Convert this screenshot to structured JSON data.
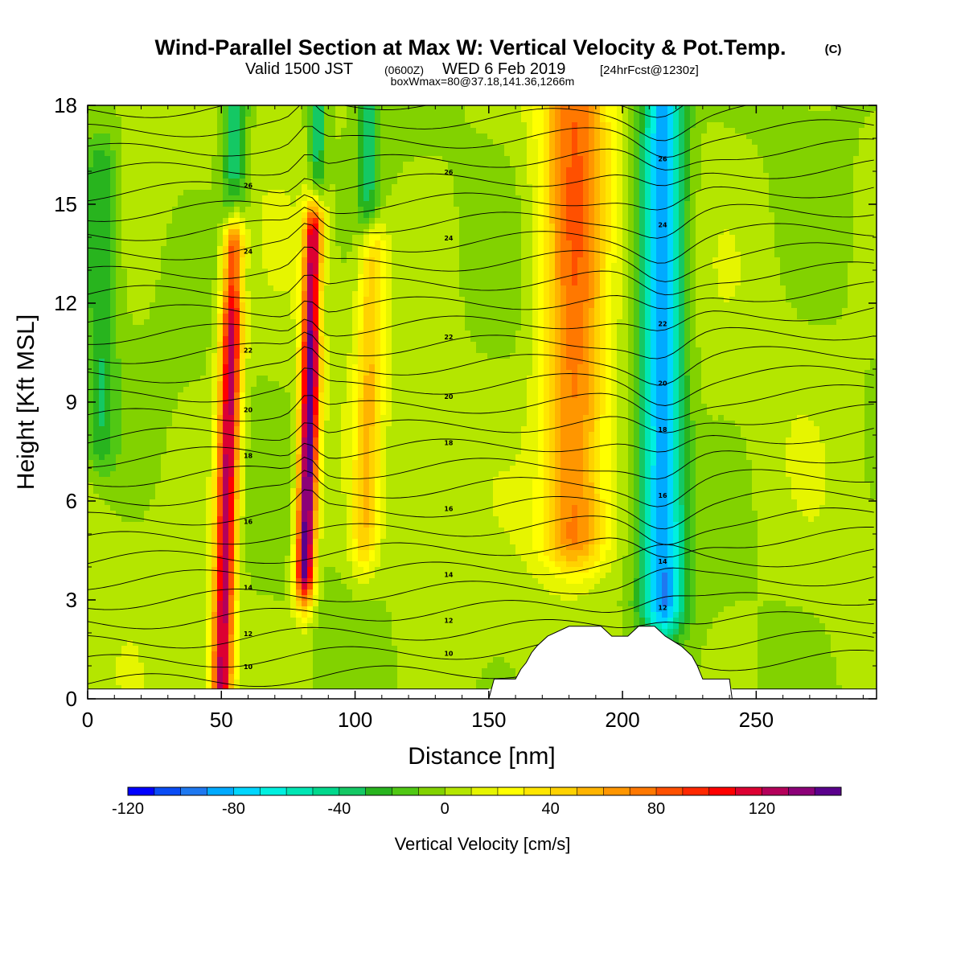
{
  "title": {
    "main": "Wind-Parallel Section at Max W: Vertical Velocity & Pot.Temp.",
    "copyright": "(C)",
    "valid_prefix": "Valid 1500 JST",
    "valid_utc": "(0600Z)",
    "valid_date": "WED 6 Feb 2019",
    "forecast": "[24hrFcst@1230z]",
    "box": "boxWmax=80@37.18,141.36,1266m"
  },
  "chart_data": {
    "type": "heatmap",
    "xlabel": "Distance [nm]",
    "ylabel": "Height [Kft MSL]",
    "xlim": [
      0,
      295
    ],
    "ylim": [
      0,
      18
    ],
    "x_ticks": [
      0,
      50,
      100,
      150,
      200,
      250
    ],
    "y_ticks": [
      0,
      3,
      6,
      9,
      12,
      15,
      18
    ],
    "colorbar": {
      "label": "Vertical Velocity [cm/s]",
      "min": -120,
      "max": 150,
      "step": 10,
      "tick_values": [
        -120,
        -80,
        -40,
        0,
        40,
        80,
        120
      ],
      "tick_labels": [
        "-120",
        "-80",
        "-40",
        "0",
        "40",
        "80",
        "120"
      ],
      "colors": [
        "#0000ff",
        "#0a4cf5",
        "#1e78f0",
        "#00aaff",
        "#00d6ff",
        "#00f0e0",
        "#00e6b4",
        "#00d88c",
        "#14c864",
        "#28b41e",
        "#50c814",
        "#82d200",
        "#b4e600",
        "#e6f500",
        "#ffff00",
        "#ffe600",
        "#ffd200",
        "#ffb400",
        "#ff9600",
        "#ff7800",
        "#ff5000",
        "#ff2800",
        "#ff0000",
        "#dc0032",
        "#b4005a",
        "#8c0078",
        "#5a008c"
      ]
    },
    "velocity_features": [
      {
        "x": 52,
        "ymin": 0.5,
        "ymax": 13.5,
        "w": 125,
        "half_width": 4
      },
      {
        "x": 82,
        "ymin": 4,
        "ymax": 14,
        "w": 150,
        "half_width": 3.5
      },
      {
        "x": 104,
        "ymin": 5,
        "ymax": 13.5,
        "w": 45,
        "half_width": 5
      },
      {
        "x": 182,
        "ymin": 5,
        "ymax": 18,
        "w": 75,
        "half_width": 12
      },
      {
        "x": 215,
        "ymin": 3,
        "ymax": 18,
        "w": -90,
        "half_width": 8
      },
      {
        "x": 86,
        "ymin": 12,
        "ymax": 18,
        "w": -40,
        "half_width": 3
      },
      {
        "x": 55,
        "ymin": 13,
        "ymax": 18,
        "w": -40,
        "half_width": 5
      },
      {
        "x": 105,
        "ymin": 15,
        "ymax": 18,
        "w": -35,
        "half_width": 4
      },
      {
        "x": 5,
        "ymin": 8,
        "ymax": 16,
        "w": -30,
        "half_width": 6
      }
    ],
    "terrain": [
      [
        150,
        0
      ],
      [
        152,
        0.6
      ],
      [
        160,
        0.6
      ],
      [
        162,
        0.9
      ],
      [
        164,
        1.1
      ],
      [
        166,
        1.4
      ],
      [
        168,
        1.6
      ],
      [
        172,
        1.9
      ],
      [
        180,
        2.2
      ],
      [
        192,
        2.2
      ],
      [
        196,
        1.9
      ],
      [
        202,
        1.9
      ],
      [
        206,
        2.2
      ],
      [
        212,
        2.2
      ],
      [
        216,
        1.9
      ],
      [
        222,
        1.6
      ],
      [
        226,
        1.3
      ],
      [
        228,
        1.0
      ],
      [
        230,
        0.6
      ],
      [
        240,
        0.6
      ],
      [
        241,
        0
      ]
    ],
    "surface_base": 0.3,
    "theta_contours": [
      {
        "label": "10",
        "base_level": 0.9
      },
      {
        "label": "12",
        "base_level": 1.9
      },
      {
        "label": "14",
        "base_level": 3.3
      },
      {
        "label": "16",
        "base_level": 5.3
      },
      {
        "label": "18",
        "base_level": 7.3
      },
      {
        "label": "20",
        "base_level": 8.7
      },
      {
        "label": "22",
        "base_level": 10.5
      },
      {
        "label": "24",
        "base_level": 13.5
      },
      {
        "label": "26",
        "base_level": 15.5
      }
    ]
  }
}
